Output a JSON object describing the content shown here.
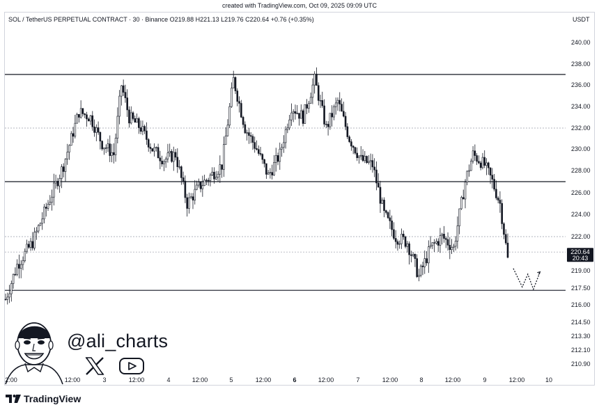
{
  "caption": "created with TradingView.com, Oct 09, 2025 09:09 UTC",
  "header": {
    "symbol_line": "SOL / TetherUS PERPETUAL CONTRACT · 30 · Binance  O219.88  H221.13  L219.76  C220.64  +0.76 (+0.35%)",
    "currency": "USDT"
  },
  "price_badge": {
    "price": "220.64",
    "countdown": "20:43"
  },
  "overlay": {
    "handle": "@ali_charts",
    "icons": [
      "x-logo-icon",
      "youtube-icon",
      "avatar-portrait"
    ]
  },
  "watermark": "TradingView",
  "colors": {
    "candle": "#131722",
    "level_line": "#131722",
    "dotted": "#b2b5be",
    "accent": "#131722"
  },
  "chart_data": {
    "type": "candlestick",
    "symbol": "SOL / TetherUS PERPETUAL CONTRACT",
    "interval": "30",
    "exchange": "Binance",
    "ohlc_last": {
      "open": 219.88,
      "high": 221.13,
      "low": 219.76,
      "close": 220.64,
      "change": 0.76,
      "change_pct": 0.35
    },
    "y_ticks": [
      "240.00",
      "238.00",
      "236.00",
      "234.00",
      "232.00",
      "230.00",
      "228.00",
      "226.00",
      "224.00",
      "222.00",
      "219.00",
      "217.50",
      "216.00",
      "214.50",
      "213.30",
      "212.10",
      "210.90"
    ],
    "x_ticks": [
      "2:00",
      "12:00",
      "3",
      "12:00",
      "4",
      "12:00",
      "5",
      "12:00",
      "6",
      "12:00",
      "7",
      "12:00",
      "8",
      "12:00",
      "9",
      "12:00",
      "10"
    ],
    "horizontal_levels": [
      {
        "price": 237.0,
        "style": "solid"
      },
      {
        "price": 232.0,
        "style": "dotted"
      },
      {
        "price": 227.0,
        "style": "solid"
      },
      {
        "price": 222.0,
        "style": "dotted"
      },
      {
        "price": 220.64,
        "style": "dotted"
      },
      {
        "price": 217.3,
        "style": "solid"
      }
    ],
    "path_waypoints": [
      [
        0,
        216.5
      ],
      [
        6,
        219.5
      ],
      [
        14,
        221.5
      ],
      [
        22,
        225.0
      ],
      [
        30,
        228.5
      ],
      [
        38,
        233.5
      ],
      [
        44,
        233.0
      ],
      [
        50,
        230.5
      ],
      [
        56,
        229.5
      ],
      [
        60,
        236.0
      ],
      [
        64,
        233.0
      ],
      [
        70,
        232.0
      ],
      [
        76,
        230.0
      ],
      [
        82,
        229.0
      ],
      [
        88,
        229.5
      ],
      [
        94,
        225.0
      ],
      [
        100,
        226.5
      ],
      [
        106,
        227.5
      ],
      [
        112,
        228.5
      ],
      [
        118,
        236.5
      ],
      [
        124,
        232.0
      ],
      [
        130,
        230.0
      ],
      [
        136,
        227.5
      ],
      [
        142,
        229.5
      ],
      [
        148,
        234.0
      ],
      [
        154,
        233.0
      ],
      [
        160,
        236.5
      ],
      [
        166,
        232.0
      ],
      [
        172,
        234.5
      ],
      [
        178,
        231.0
      ],
      [
        184,
        229.0
      ],
      [
        190,
        228.5
      ],
      [
        196,
        224.0
      ],
      [
        202,
        222.0
      ],
      [
        208,
        221.5
      ],
      [
        214,
        218.5
      ],
      [
        220,
        221.0
      ],
      [
        226,
        222.0
      ],
      [
        232,
        221.0
      ],
      [
        238,
        227.0
      ],
      [
        242,
        229.5
      ],
      [
        248,
        228.5
      ],
      [
        252,
        227.0
      ],
      [
        256,
        225.0
      ],
      [
        260,
        220.0
      ]
    ],
    "projection": [
      [
        0,
        219.2
      ],
      [
        8,
        217.6
      ],
      [
        13,
        218.7
      ],
      [
        18,
        217.4
      ],
      [
        24,
        218.9
      ]
    ]
  }
}
